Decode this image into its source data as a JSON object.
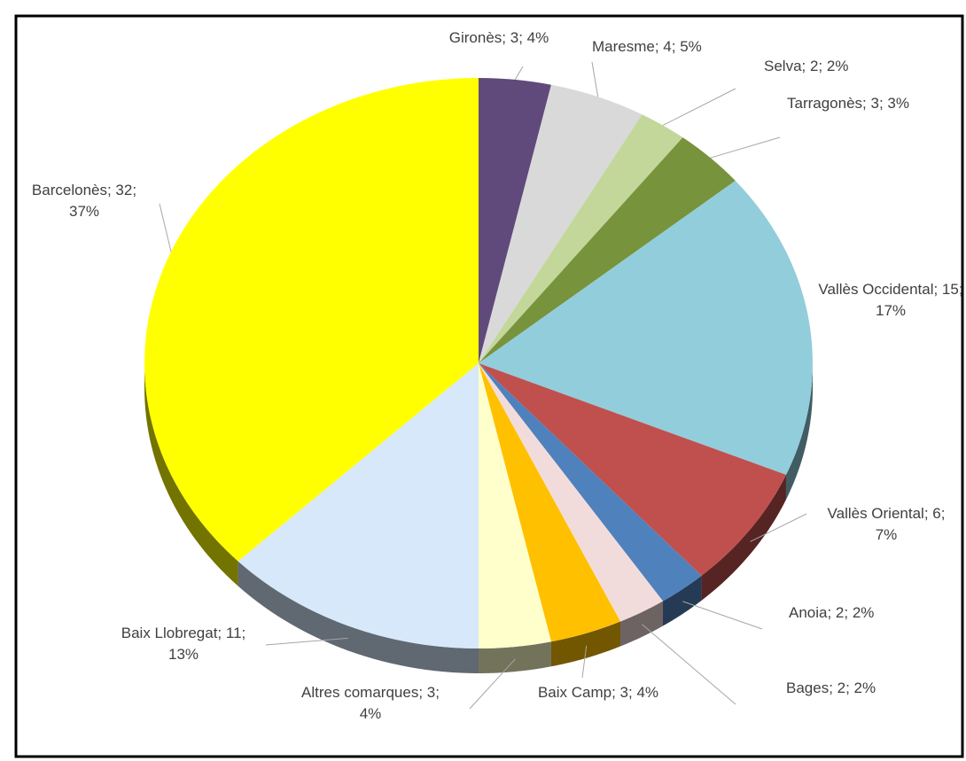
{
  "chart_data": {
    "type": "pie",
    "categories": [
      "Gironès",
      "Maresme",
      "Selva",
      "Tarragonès",
      "Vallès Occidental",
      "Vallès Oriental",
      "Anoia",
      "Bages",
      "Baix Camp",
      "Altres comarques",
      "Baix Llobregat",
      "Barcelonès"
    ],
    "values": [
      3,
      4,
      2,
      3,
      15,
      6,
      2,
      2,
      3,
      3,
      11,
      32
    ],
    "value_labels": [
      "Gironès; 3; 4%",
      "Maresme; 4; 5%",
      "Selva; 2; 2%",
      "Tarragonès; 3; 3%",
      "Vallès Occidental; 15; 17%",
      "Vallès Oriental; 6; 7%",
      "Anoia; 2; 2%",
      "Bages; 2; 2%",
      "Baix Camp; 3; 4%",
      "Altres comarques; 3; 4%",
      "Baix Llobregat; 11; 13%",
      "Barcelonès; 32; 37%"
    ],
    "colors": [
      "#604a7b",
      "#d9d9d9",
      "#c4d79b",
      "#77933c",
      "#92cddc",
      "#c0504d",
      "#4f81bd",
      "#f2dcdb",
      "#ffc000",
      "#ffffcc",
      "#d6e8fa",
      "#ffff00"
    ]
  }
}
